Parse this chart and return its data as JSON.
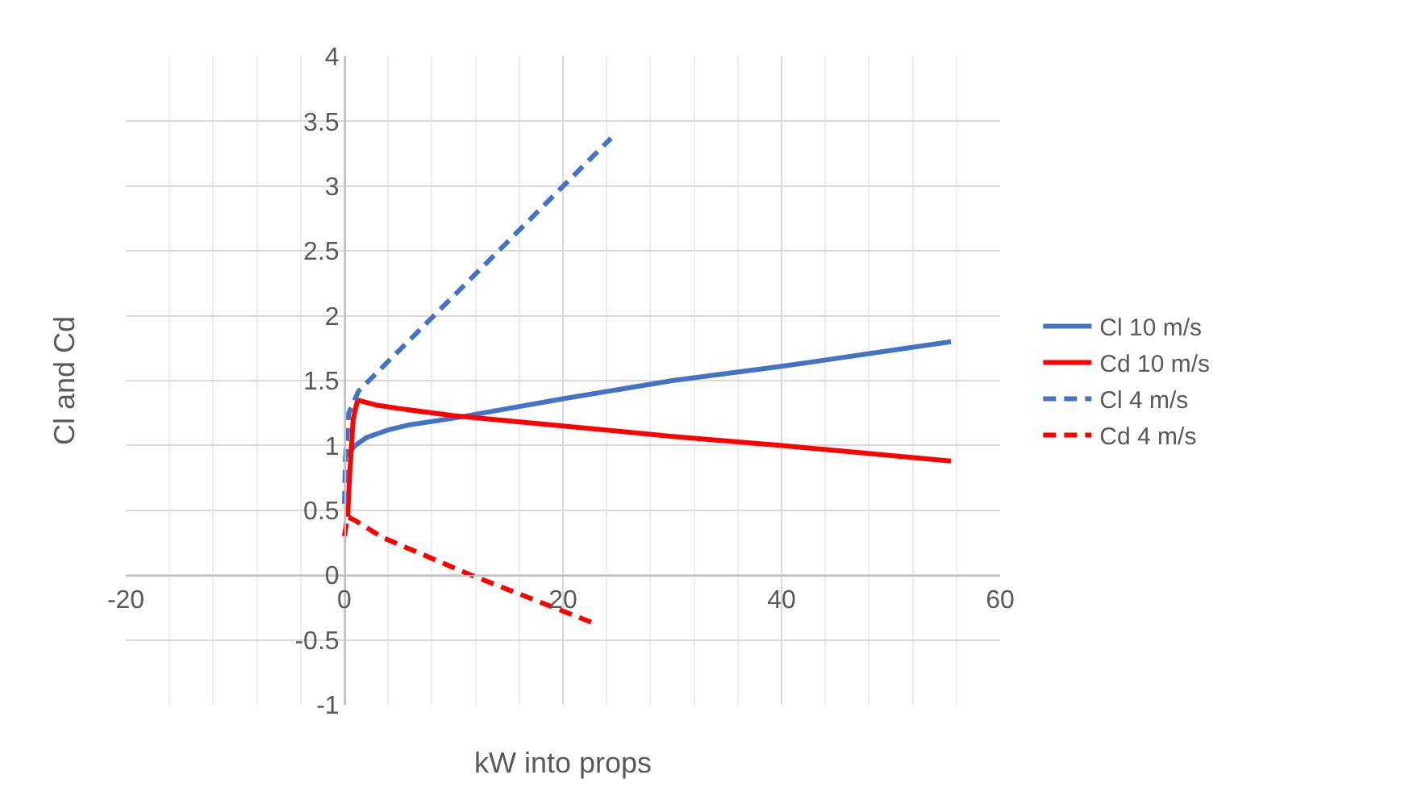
{
  "chart_data": {
    "type": "line",
    "xlabel": "kW into props",
    "ylabel": "Cl and Cd",
    "xlim": [
      -20,
      60
    ],
    "xticks": [
      -20,
      0,
      20,
      40,
      60
    ],
    "ylim": [
      -1,
      4
    ],
    "yticks": [
      -1,
      -0.5,
      0,
      0.5,
      1,
      1.5,
      2,
      2.5,
      3,
      3.5,
      4
    ],
    "grid": true,
    "legend": "right",
    "marker": "none",
    "series": [
      {
        "name": "Cl 10 m/s",
        "color": "#4472c4",
        "line_style": "solid",
        "x": [
          0.2,
          1,
          2,
          4,
          6,
          10,
          20,
          30,
          40,
          55.5
        ],
        "values": [
          0.92,
          1.0,
          1.06,
          1.12,
          1.16,
          1.21,
          1.36,
          1.5,
          1.61,
          1.8
        ]
      },
      {
        "name": "Cd 10 m/s",
        "color": "#ff0000",
        "line_style": "solid",
        "x": [
          0.3,
          0.5,
          0.8,
          1.2,
          3,
          5.4,
          10,
          20,
          30,
          40,
          55.5
        ],
        "values": [
          0.45,
          0.8,
          1.2,
          1.35,
          1.31,
          1.28,
          1.23,
          1.15,
          1.07,
          1.0,
          0.88
        ]
      },
      {
        "name": "Cl 4 m/s",
        "color": "#4472c4",
        "line_style": "dashed",
        "x": [
          0,
          0.1,
          0.4,
          1.3,
          8.3,
          24.4
        ],
        "values": [
          0.55,
          0.9,
          1.25,
          1.42,
          2.01,
          3.37
        ]
      },
      {
        "name": "Cd 4 m/s",
        "color": "#ff0000",
        "line_style": "dashed",
        "x": [
          0,
          0.3,
          1,
          3.5,
          11.6,
          22.8
        ],
        "values": [
          0.3,
          0.45,
          0.42,
          0.29,
          0.0,
          -0.37
        ]
      }
    ]
  }
}
